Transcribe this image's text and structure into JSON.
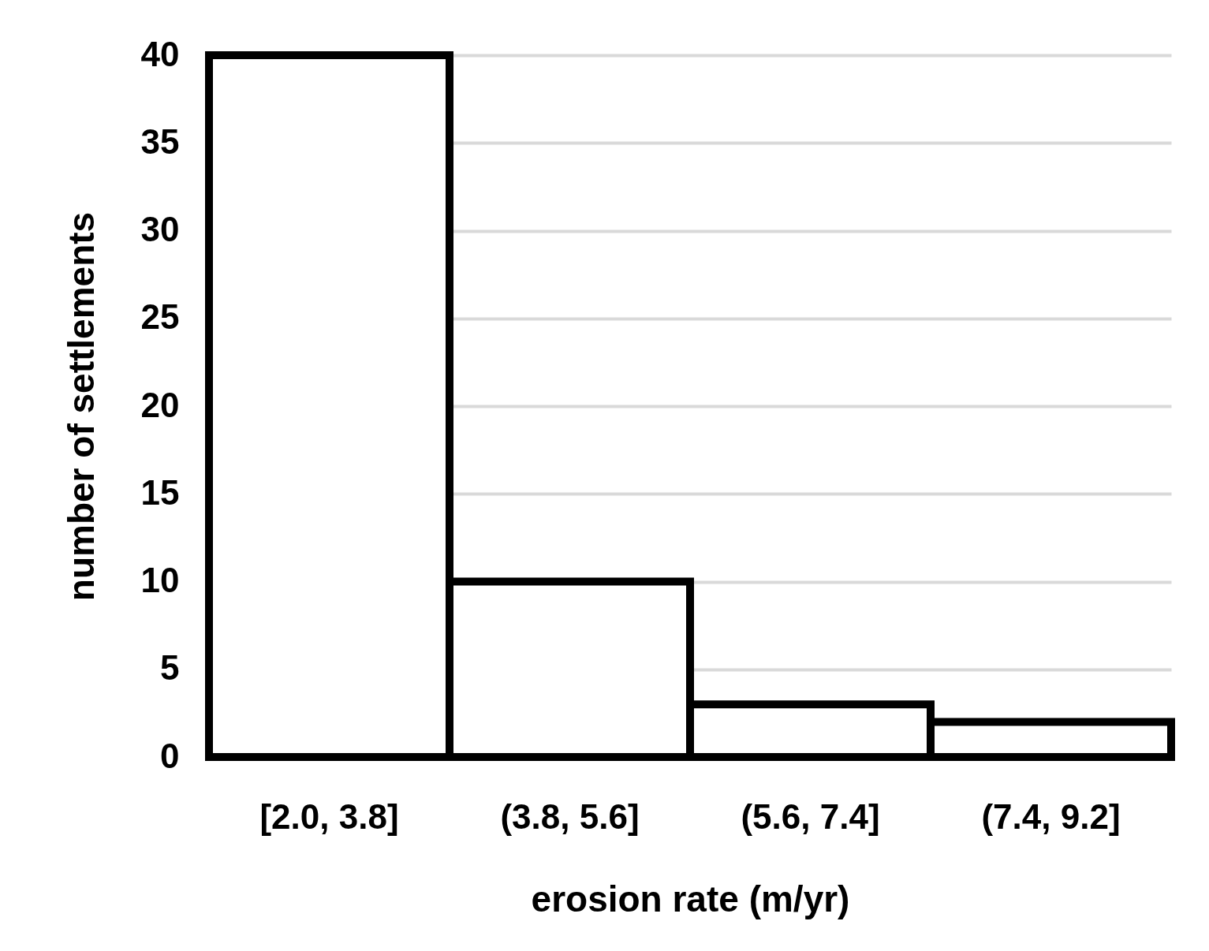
{
  "chart_data": {
    "type": "bar",
    "xlabel": "erosion rate (m/yr)",
    "ylabel": "number of settlements",
    "categories": [
      "[2.0, 3.8]",
      "(3.8, 5.6]",
      "(5.6, 7.4]",
      "(7.4, 9.2]"
    ],
    "values": [
      40,
      10,
      3,
      2
    ],
    "color": "#ffffff",
    "ylim": [
      0,
      40
    ],
    "yticks": [
      0,
      5,
      10,
      15,
      20,
      25,
      30,
      35,
      40
    ],
    "grid": "y"
  }
}
